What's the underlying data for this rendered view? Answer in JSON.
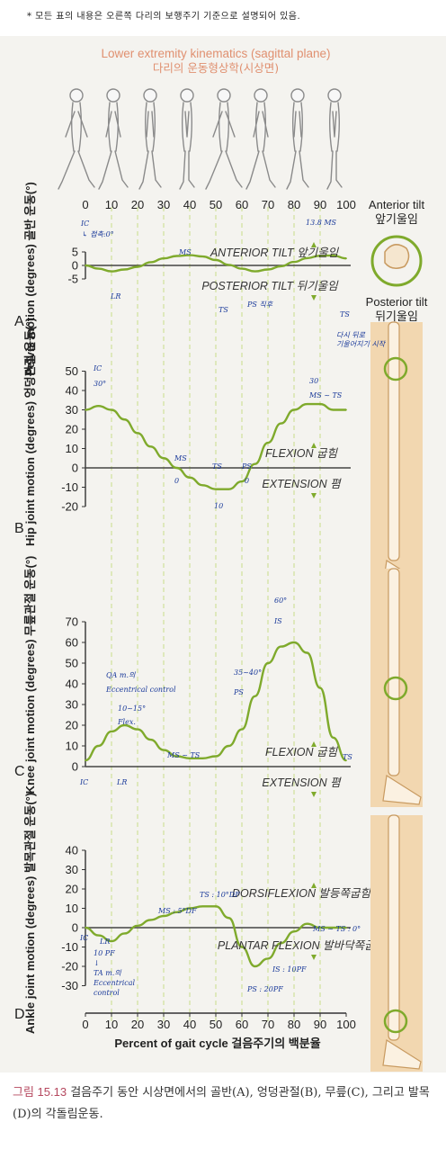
{
  "note": "* 모든 표의 내용은 오른쪽 다리의 보행주기 기준으로 설명되어 있음.",
  "header": {
    "title_en": "Lower extremity kinematics (sagittal plane)",
    "title_ko": "다리의 운동형상학(시상면)"
  },
  "x_ticks": [
    "0",
    "10",
    "20",
    "30",
    "40",
    "50",
    "60",
    "70",
    "80",
    "90",
    "100"
  ],
  "x_axis_label": "Percent of gait cycle 걸음주기의 백분율",
  "colors": {
    "curve": "#7faa2c",
    "title": "#e09070",
    "annot": "#1a3a9a",
    "guide": "#c9dc8a",
    "bone": "#e7b884"
  },
  "chart_data": [
    {
      "type": "line",
      "panel_letter": "A",
      "ylabel": "Pelvis motion (degrees) 골반 운동(°)",
      "ylim": [
        -5,
        5
      ],
      "yticks": [
        "5",
        "0",
        "-5"
      ],
      "x": [
        0,
        5,
        10,
        15,
        20,
        25,
        30,
        35,
        40,
        45,
        50,
        55,
        60,
        65,
        70,
        75,
        80,
        85,
        90,
        95,
        100
      ],
      "y": [
        0,
        -1.2,
        -2.2,
        -1.5,
        -0.5,
        1.2,
        2.6,
        3.5,
        3.8,
        3.3,
        2,
        0.2,
        -1.2,
        -2.2,
        -1.5,
        -0.3,
        1.3,
        2.7,
        3.6,
        3.7,
        2.6
      ],
      "region_up": "ANTERIOR TILT 앞기울임",
      "region_down": "POSTERIOR TILT 뒤기울임",
      "side_labels": [
        "Anterior tilt\n앞기울임",
        "Posterior tilt\n뒤기울임"
      ],
      "annotations": [
        "IC",
        "↳ 접촉:0°",
        "LR",
        "MS",
        "TS",
        "PS 직후",
        "13.8 MS",
        "TS",
        "다시 뒤로\n기울어지기 시작"
      ]
    },
    {
      "type": "line",
      "panel_letter": "B",
      "ylabel": "Hip joint motion (degrees) 엉덩관절 운동(°)",
      "ylim": [
        -20,
        50
      ],
      "yticks": [
        "50",
        "40",
        "30",
        "20",
        "10",
        "0",
        "-10",
        "-20"
      ],
      "x": [
        0,
        5,
        10,
        15,
        20,
        25,
        30,
        35,
        40,
        45,
        50,
        55,
        60,
        65,
        70,
        75,
        80,
        85,
        90,
        95,
        100
      ],
      "y": [
        30,
        32,
        30,
        25,
        18,
        11,
        5,
        0,
        -5,
        -9,
        -11,
        -11,
        -7,
        2,
        13,
        23,
        30,
        33,
        33,
        30,
        30
      ],
      "region_up": "FLEXION 굽힘",
      "region_down": "EXTENSION 폄",
      "annotations": [
        "IC",
        "30°",
        "MS",
        "0",
        "TS",
        "10",
        "PS",
        "0",
        "30",
        "MS ~ TS"
      ]
    },
    {
      "type": "line",
      "panel_letter": "C",
      "ylabel": "Knee joint motion (degrees) 무릎관절 운동(°)",
      "ylim": [
        0,
        70
      ],
      "yticks": [
        "70",
        "60",
        "50",
        "40",
        "30",
        "20",
        "10",
        "0"
      ],
      "x": [
        0,
        5,
        10,
        15,
        20,
        25,
        30,
        35,
        40,
        45,
        50,
        55,
        60,
        65,
        70,
        75,
        80,
        85,
        90,
        95,
        100
      ],
      "y": [
        3,
        10,
        17,
        20,
        18,
        13,
        8,
        5,
        4,
        4,
        5,
        10,
        18,
        34,
        50,
        58,
        60,
        55,
        38,
        14,
        3
      ],
      "region_up": "FLEXION 굽힘",
      "region_down": "EXTENSION 폄",
      "annotations": [
        "QA m.의\nEccentrical control",
        "10~15°\nFlex.",
        "LR",
        "IC",
        "MS ~ TS",
        "35~40°\nPS",
        "60°\nIS",
        "TS"
      ]
    },
    {
      "type": "line",
      "panel_letter": "D",
      "ylabel": "Ankle joint motion (degrees) 발목관절 운동(°)",
      "ylim": [
        -30,
        40
      ],
      "yticks": [
        "40",
        "30",
        "20",
        "10",
        "0",
        "-10",
        "-20",
        "-30"
      ],
      "x": [
        0,
        5,
        10,
        15,
        20,
        25,
        30,
        35,
        40,
        45,
        50,
        55,
        60,
        65,
        70,
        75,
        80,
        85,
        90,
        95,
        100
      ],
      "y": [
        0,
        -4,
        -7,
        -3,
        1,
        4,
        6,
        8,
        10,
        11,
        11,
        5,
        -10,
        -20,
        -16,
        -8,
        -2,
        2,
        0,
        0,
        0
      ],
      "region_up": "DORSIFLEXION 발등쪽굽힘",
      "region_down": "PLANTAR FLEXION 발바닥쪽굽힘",
      "annotations": [
        "IC",
        "LR",
        "10 PF\n↓\nTA m.의\nEccentrical\ncontrol",
        "MS : 5°DF",
        "TS : 10°DF",
        "PS : 20PF",
        "IS : 10PF",
        "MS ~ TS : 0°"
      ]
    }
  ],
  "caption": {
    "label": "그림 15.13",
    "text": " 걸음주기 동안 시상면에서의 골반(A), 엉덩관절(B), 무릎(C), 그리고 발목(D)의 각돌림운동."
  }
}
